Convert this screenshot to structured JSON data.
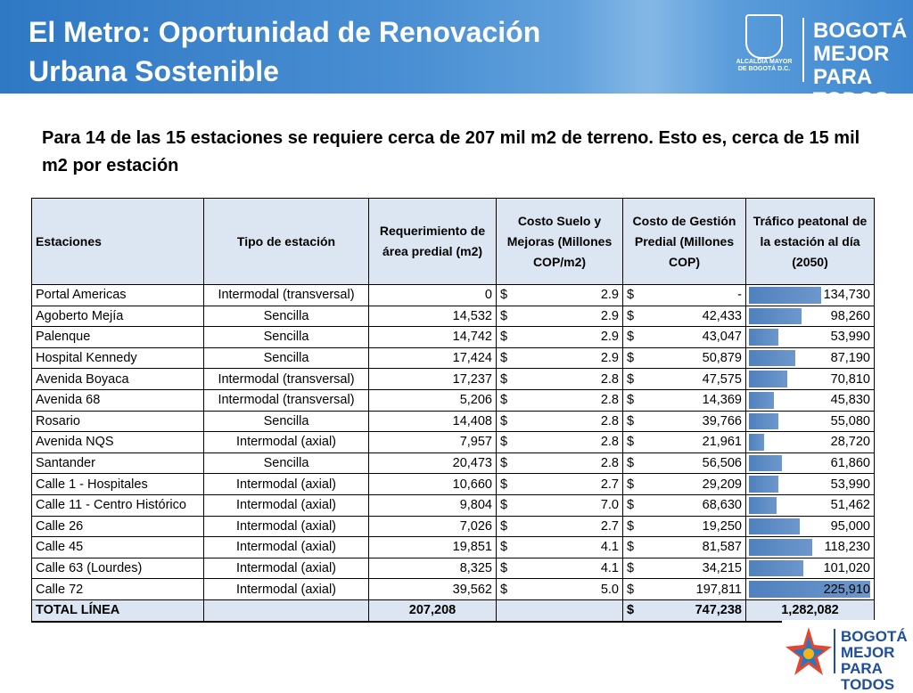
{
  "header": {
    "title": "El Metro: Oportunidad de Renovación Urbana Sostenible",
    "logo_alcaldia": "ALCALDÍA MAYOR DE BOGOTÁ D.C.",
    "logo_bogota": "BOGOTÁ MEJOR PARA TODOS"
  },
  "subtitle": "Para 14 de las 15 estaciones se requiere cerca de 207 mil m2 de terreno. Esto es, cerca de 15 mil m2 por estación",
  "table": {
    "columns": [
      "Estaciones",
      "Tipo de estación",
      "Requerimiento de área predial (m2)",
      "Costo Suelo y Mejoras (Millones COP/m2)",
      "Costo de Gestión Predial (Millones COP)",
      "Tráfico peatonal de la estación al día (2050)"
    ],
    "rows": [
      {
        "station": "Portal Americas",
        "type": "Intermodal (transversal)",
        "area": "0",
        "cost_currency": "$",
        "cost": "2.9",
        "mgmt_currency": "$",
        "mgmt": "-",
        "traffic": "134,730"
      },
      {
        "station": "Agoberto Mejía",
        "type": "Sencilla",
        "area": "14,532",
        "cost_currency": "$",
        "cost": "2.9",
        "mgmt_currency": "$",
        "mgmt": "42,433",
        "traffic": "98,260"
      },
      {
        "station": "Palenque",
        "type": "Sencilla",
        "area": "14,742",
        "cost_currency": "$",
        "cost": "2.9",
        "mgmt_currency": "$",
        "mgmt": "43,047",
        "traffic": "53,990"
      },
      {
        "station": "Hospital Kennedy",
        "type": "Sencilla",
        "area": "17,424",
        "cost_currency": "$",
        "cost": "2.9",
        "mgmt_currency": "$",
        "mgmt": "50,879",
        "traffic": "87,190"
      },
      {
        "station": "Avenida Boyaca",
        "type": "Intermodal (transversal)",
        "area": "17,237",
        "cost_currency": "$",
        "cost": "2.8",
        "mgmt_currency": "$",
        "mgmt": "47,575",
        "traffic": "70,810"
      },
      {
        "station": "Avenida 68",
        "type": "Intermodal (transversal)",
        "area": "5,206",
        "cost_currency": "$",
        "cost": "2.8",
        "mgmt_currency": "$",
        "mgmt": "14,369",
        "traffic": "45,830"
      },
      {
        "station": "Rosario",
        "type": "Sencilla",
        "area": "14,408",
        "cost_currency": "$",
        "cost": "2.8",
        "mgmt_currency": "$",
        "mgmt": "39,766",
        "traffic": "55,080"
      },
      {
        "station": "Avenida NQS",
        "type": "Intermodal (axial)",
        "area": "7,957",
        "cost_currency": "$",
        "cost": "2.8",
        "mgmt_currency": "$",
        "mgmt": "21,961",
        "traffic": "28,720"
      },
      {
        "station": "Santander",
        "type": "Sencilla",
        "area": "20,473",
        "cost_currency": "$",
        "cost": "2.8",
        "mgmt_currency": "$",
        "mgmt": "56,506",
        "traffic": "61,860"
      },
      {
        "station": "Calle 1 - Hospitales",
        "type": "Intermodal (axial)",
        "area": "10,660",
        "cost_currency": "$",
        "cost": "2.7",
        "mgmt_currency": "$",
        "mgmt": "29,209",
        "traffic": "53,990"
      },
      {
        "station": "Calle 11 - Centro Histórico",
        "type": "Intermodal (axial)",
        "area": "9,804",
        "cost_currency": "$",
        "cost": "7.0",
        "mgmt_currency": "$",
        "mgmt": "68,630",
        "traffic": "51,462"
      },
      {
        "station": "Calle 26",
        "type": "Intermodal (axial)",
        "area": "7,026",
        "cost_currency": "$",
        "cost": "2.7",
        "mgmt_currency": "$",
        "mgmt": "19,250",
        "traffic": "95,000"
      },
      {
        "station": "Calle 45",
        "type": "Intermodal (axial)",
        "area": "19,851",
        "cost_currency": "$",
        "cost": "4.1",
        "mgmt_currency": "$",
        "mgmt": "81,587",
        "traffic": "118,230"
      },
      {
        "station": "Calle 63 (Lourdes)",
        "type": "Intermodal (axial)",
        "area": "8,325",
        "cost_currency": "$",
        "cost": "4.1",
        "mgmt_currency": "$",
        "mgmt": "34,215",
        "traffic": "101,020"
      },
      {
        "station": "Calle 72",
        "type": "Intermodal (axial)",
        "area": "39,562",
        "cost_currency": "$",
        "cost": "5.0",
        "mgmt_currency": "$",
        "mgmt": "197,811",
        "traffic": "225,910"
      }
    ],
    "total": {
      "label": "TOTAL LÍNEA",
      "area": "207,208",
      "mgmt_currency": "$",
      "mgmt": "747,238",
      "traffic": "1,282,082"
    }
  }
}
